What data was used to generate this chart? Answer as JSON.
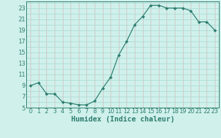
{
  "x": [
    0,
    1,
    2,
    3,
    4,
    5,
    6,
    7,
    8,
    9,
    10,
    11,
    12,
    13,
    14,
    15,
    16,
    17,
    18,
    19,
    20,
    21,
    22,
    23
  ],
  "y": [
    9.0,
    9.5,
    7.5,
    7.5,
    6.0,
    5.8,
    5.5,
    5.5,
    6.2,
    8.5,
    10.5,
    14.5,
    17.0,
    20.0,
    21.5,
    23.5,
    23.5,
    23.0,
    23.0,
    23.0,
    22.5,
    20.5,
    20.5,
    19.0
  ],
  "line_color": "#2d7d6e",
  "marker": "D",
  "marker_size": 2.2,
  "bg_color": "#cff0eb",
  "grid_color_teal": "#a8d8d0",
  "grid_color_pink": "#d4b8b8",
  "xlabel": "Humidex (Indice chaleur)",
  "xlim": [
    -0.5,
    23.5
  ],
  "ylim": [
    5,
    24.2
  ],
  "yticks": [
    5,
    7,
    9,
    11,
    13,
    15,
    17,
    19,
    21,
    23
  ],
  "xticks": [
    0,
    1,
    2,
    3,
    4,
    5,
    6,
    7,
    8,
    9,
    10,
    11,
    12,
    13,
    14,
    15,
    16,
    17,
    18,
    19,
    20,
    21,
    22,
    23
  ],
  "tick_label_fontsize": 6.0,
  "xlabel_fontsize": 7.5
}
